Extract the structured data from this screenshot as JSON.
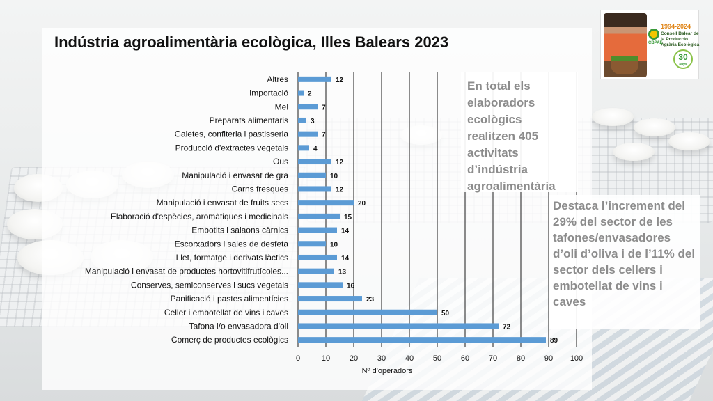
{
  "title": "Indústria agroalimentària ecològica, Illes Balears 2023",
  "info_box_1": "En total els elaboradors ecològics realitzen 405 activitats d’indústria agroalimentària",
  "info_box_2": "Destaca l’increment del 29% del sector de les tafones/envasadores d’oli d’oliva i de l’11% del sector dels cellers i embotellat de vins i caves",
  "logo": {
    "years": "1994-2024",
    "org": "Consell Balear de la Producció Agrària Ecològica",
    "acronym": "CBPAE",
    "anniversary": "30",
    "anniversary_sub": "anys"
  },
  "chart_data": {
    "type": "bar",
    "orientation": "horizontal",
    "categories": [
      "Altres",
      "Importació",
      "Mel",
      "Preparats alimentaris",
      "Galetes, confiteria i pastisseria",
      "Producció d'extractes vegetals",
      "Ous",
      "Manipulació i envasat de gra",
      "Carns fresques",
      "Manipulació i envasat de fruits secs",
      "Elaboració d'espècies, aromàtiques i medicinals",
      "Embotits i salaons càrnics",
      "Escorxadors i sales de desfeta",
      "Llet, formatge i derivats làctics",
      "Manipulació i envasat de productes hortovitifrutícoles...",
      "Conserves, semiconserves i sucs vegetals",
      "Panificació i pastes alimentícies",
      "Celler i embotellat de vins i caves",
      "Tafona i/o envasadora d'oli",
      "Comerç de productes ecològics"
    ],
    "values": [
      12,
      2,
      7,
      3,
      7,
      4,
      12,
      10,
      12,
      20,
      15,
      14,
      10,
      14,
      13,
      16,
      23,
      50,
      72,
      89
    ],
    "xlabel": "Nº d'operadors",
    "xlim": [
      0,
      100
    ],
    "xticks": [
      0,
      10,
      20,
      30,
      40,
      50,
      60,
      70,
      80,
      90,
      100
    ],
    "bar_color": "#5b9bd5",
    "grid": "vertical",
    "data_labels": true
  }
}
